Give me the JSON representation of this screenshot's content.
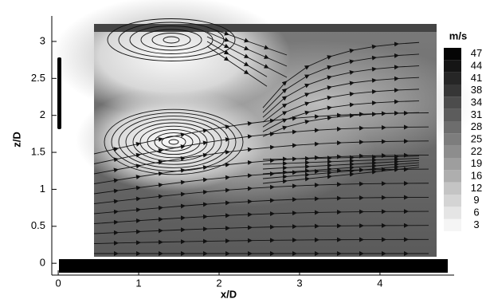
{
  "chart_data": {
    "type": "contour",
    "xlabel": "x/D",
    "ylabel": "z/D",
    "xlim": [
      -0.08,
      5.12
    ],
    "ylim": [
      -0.16,
      3.28
    ],
    "xticks": [
      0,
      1,
      2,
      3,
      4
    ],
    "yticks": [
      0,
      0.5,
      1,
      1.5,
      2,
      2.5,
      3
    ],
    "colorbar": {
      "title": "m/s",
      "levels": [
        3,
        6,
        9,
        12,
        16,
        19,
        22,
        25,
        28,
        31,
        34,
        38,
        41,
        44,
        47
      ]
    }
  }
}
